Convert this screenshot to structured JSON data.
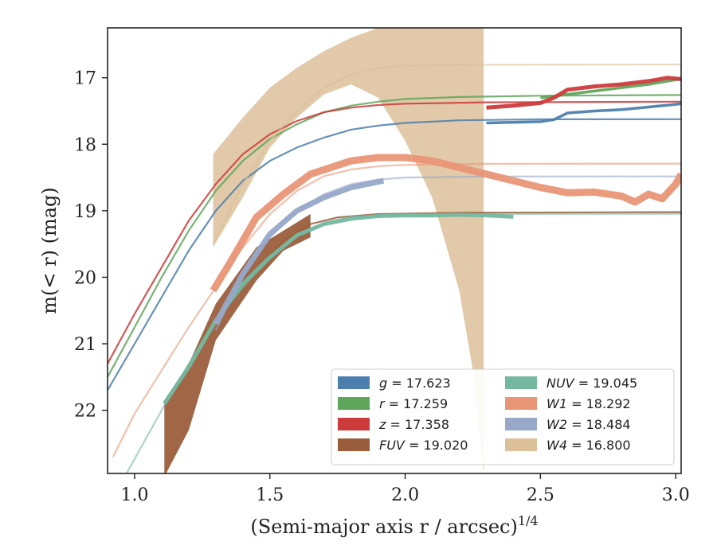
{
  "chart_data": {
    "type": "line",
    "xlabel": "(Semi-major axis r / arcsec)",
    "xlabel_superscript": "1/4",
    "ylabel": "m(< r) (mag)",
    "xlim": [
      0.9,
      3.02
    ],
    "ylim": [
      22.95,
      16.25
    ],
    "y_inverted": true,
    "grid": false,
    "legend_position": "lower-right",
    "x_ticks": [
      "1.0",
      "1.5",
      "2.0",
      "2.5",
      "3.0"
    ],
    "x_tick_values": [
      1.0,
      1.5,
      2.0,
      2.5,
      3.0
    ],
    "y_ticks": [
      "17",
      "18",
      "19",
      "20",
      "21",
      "22"
    ],
    "y_tick_values": [
      17,
      18,
      19,
      20,
      21,
      22
    ],
    "legend": [
      {
        "band": "g",
        "value": "17.623",
        "color": "#4c7fad"
      },
      {
        "band": "r",
        "value": "17.259",
        "color": "#5fa65a"
      },
      {
        "band": "z",
        "value": "17.358",
        "color": "#cc3b3b"
      },
      {
        "band": "FUV",
        "value": "19.020",
        "color": "#9b5e3c"
      },
      {
        "band": "NUV",
        "value": "19.045",
        "color": "#74b8a0"
      },
      {
        "band": "W1",
        "value": "18.292",
        "color": "#e99676"
      },
      {
        "band": "W2",
        "value": "18.484",
        "color": "#97a8c9"
      },
      {
        "band": "W4",
        "value": "16.800",
        "color": "#dcc09a"
      }
    ],
    "series": [
      {
        "band": "g",
        "color": "#4c7fad",
        "model_curve": [
          [
            0.9,
            21.7
          ],
          [
            1.0,
            21.0
          ],
          [
            1.1,
            20.3
          ],
          [
            1.2,
            19.6
          ],
          [
            1.3,
            19.0
          ],
          [
            1.4,
            18.55
          ],
          [
            1.5,
            18.25
          ],
          [
            1.6,
            18.05
          ],
          [
            1.7,
            17.9
          ],
          [
            1.8,
            17.78
          ],
          [
            1.9,
            17.72
          ],
          [
            2.0,
            17.68
          ],
          [
            2.2,
            17.64
          ],
          [
            2.5,
            17.625
          ],
          [
            3.02,
            17.623
          ]
        ],
        "measured": [
          [
            2.3,
            17.68
          ],
          [
            2.4,
            17.67
          ],
          [
            2.5,
            17.66
          ],
          [
            2.55,
            17.63
          ],
          [
            2.6,
            17.53
          ],
          [
            2.7,
            17.5
          ],
          [
            2.8,
            17.48
          ],
          [
            2.9,
            17.44
          ],
          [
            3.0,
            17.4
          ],
          [
            3.02,
            17.39
          ]
        ]
      },
      {
        "band": "r",
        "color": "#5fa65a",
        "model_curve": [
          [
            0.9,
            21.5
          ],
          [
            1.0,
            20.75
          ],
          [
            1.1,
            20.0
          ],
          [
            1.2,
            19.3
          ],
          [
            1.3,
            18.7
          ],
          [
            1.4,
            18.25
          ],
          [
            1.5,
            17.92
          ],
          [
            1.6,
            17.7
          ],
          [
            1.7,
            17.52
          ],
          [
            1.8,
            17.42
          ],
          [
            1.9,
            17.36
          ],
          [
            2.0,
            17.32
          ],
          [
            2.2,
            17.29
          ],
          [
            2.5,
            17.27
          ],
          [
            3.02,
            17.26
          ]
        ],
        "measured": [
          [
            2.5,
            17.3
          ],
          [
            2.6,
            17.25
          ],
          [
            2.7,
            17.2
          ],
          [
            2.8,
            17.15
          ],
          [
            2.9,
            17.1
          ],
          [
            3.0,
            17.03
          ],
          [
            3.02,
            17.02
          ]
        ]
      },
      {
        "band": "z",
        "color": "#cc3b3b",
        "model_curve": [
          [
            0.9,
            21.3
          ],
          [
            1.0,
            20.55
          ],
          [
            1.1,
            19.85
          ],
          [
            1.2,
            19.15
          ],
          [
            1.3,
            18.6
          ],
          [
            1.4,
            18.15
          ],
          [
            1.5,
            17.85
          ],
          [
            1.6,
            17.65
          ],
          [
            1.7,
            17.52
          ],
          [
            1.8,
            17.45
          ],
          [
            1.9,
            17.41
          ],
          [
            2.0,
            17.39
          ],
          [
            2.3,
            17.37
          ],
          [
            3.02,
            17.36
          ]
        ],
        "measured": [
          [
            2.3,
            17.45
          ],
          [
            2.4,
            17.42
          ],
          [
            2.5,
            17.38
          ],
          [
            2.55,
            17.3
          ],
          [
            2.6,
            17.18
          ],
          [
            2.7,
            17.13
          ],
          [
            2.8,
            17.1
          ],
          [
            2.9,
            17.05
          ],
          [
            2.97,
            17.0
          ],
          [
            3.02,
            17.02
          ]
        ]
      },
      {
        "band": "FUV",
        "color": "#9b5e3c",
        "model_curve": [
          [
            1.45,
            19.9
          ],
          [
            1.55,
            19.45
          ],
          [
            1.65,
            19.2
          ],
          [
            1.75,
            19.1
          ],
          [
            1.9,
            19.05
          ],
          [
            2.2,
            19.03
          ],
          [
            3.02,
            19.02
          ]
        ],
        "band_upper": [
          [
            1.11,
            21.85
          ],
          [
            1.2,
            21.3
          ],
          [
            1.3,
            20.4
          ],
          [
            1.45,
            19.55
          ],
          [
            1.55,
            19.3
          ],
          [
            1.65,
            19.05
          ]
        ],
        "band_lower": [
          [
            1.11,
            23.0
          ],
          [
            1.2,
            22.3
          ],
          [
            1.3,
            20.95
          ],
          [
            1.45,
            20.05
          ],
          [
            1.55,
            19.6
          ],
          [
            1.65,
            19.4
          ]
        ]
      },
      {
        "band": "NUV",
        "color": "#74b8a0",
        "model_curve": [
          [
            0.97,
            22.95
          ],
          [
            1.1,
            22.0
          ],
          [
            1.2,
            21.3
          ],
          [
            1.3,
            20.65
          ],
          [
            1.4,
            20.15
          ],
          [
            1.5,
            19.7
          ],
          [
            1.6,
            19.35
          ],
          [
            1.7,
            19.18
          ],
          [
            1.8,
            19.09
          ],
          [
            2.0,
            19.06
          ],
          [
            2.3,
            19.05
          ],
          [
            3.02,
            19.045
          ]
        ],
        "measured": [
          [
            1.11,
            21.9
          ],
          [
            1.2,
            21.35
          ],
          [
            1.3,
            20.65
          ],
          [
            1.4,
            20.1
          ],
          [
            1.5,
            19.7
          ],
          [
            1.6,
            19.37
          ],
          [
            1.7,
            19.2
          ],
          [
            1.8,
            19.12
          ],
          [
            1.9,
            19.08
          ],
          [
            2.0,
            19.07
          ],
          [
            2.1,
            19.07
          ],
          [
            2.2,
            19.06
          ],
          [
            2.3,
            19.07
          ],
          [
            2.35,
            19.08
          ],
          [
            2.4,
            19.09
          ]
        ]
      },
      {
        "band": "W1",
        "color": "#e99676",
        "model_curve": [
          [
            0.92,
            22.7
          ],
          [
            1.0,
            22.05
          ],
          [
            1.1,
            21.4
          ],
          [
            1.2,
            20.75
          ],
          [
            1.3,
            20.15
          ],
          [
            1.4,
            19.55
          ],
          [
            1.5,
            19.05
          ],
          [
            1.6,
            18.7
          ],
          [
            1.7,
            18.48
          ],
          [
            1.8,
            18.38
          ],
          [
            1.9,
            18.33
          ],
          [
            2.0,
            18.31
          ],
          [
            2.3,
            18.295
          ],
          [
            3.02,
            18.292
          ]
        ],
        "measured": [
          [
            1.29,
            20.2
          ],
          [
            1.35,
            19.8
          ],
          [
            1.45,
            19.1
          ],
          [
            1.55,
            18.75
          ],
          [
            1.65,
            18.45
          ],
          [
            1.8,
            18.25
          ],
          [
            1.9,
            18.2
          ],
          [
            2.0,
            18.2
          ],
          [
            2.1,
            18.25
          ],
          [
            2.2,
            18.35
          ],
          [
            2.3,
            18.45
          ],
          [
            2.4,
            18.55
          ],
          [
            2.5,
            18.65
          ],
          [
            2.6,
            18.73
          ],
          [
            2.7,
            18.72
          ],
          [
            2.8,
            18.78
          ],
          [
            2.85,
            18.87
          ],
          [
            2.9,
            18.75
          ],
          [
            2.95,
            18.82
          ],
          [
            3.0,
            18.6
          ],
          [
            3.02,
            18.45
          ]
        ]
      },
      {
        "band": "W2",
        "color": "#97a8c9",
        "model_curve": [
          [
            1.3,
            20.8
          ],
          [
            1.4,
            19.95
          ],
          [
            1.5,
            19.4
          ],
          [
            1.6,
            19.0
          ],
          [
            1.7,
            18.75
          ],
          [
            1.8,
            18.6
          ],
          [
            1.9,
            18.53
          ],
          [
            2.0,
            18.5
          ],
          [
            2.3,
            18.486
          ],
          [
            3.02,
            18.484
          ]
        ],
        "measured": [
          [
            1.3,
            20.7
          ],
          [
            1.4,
            19.95
          ],
          [
            1.5,
            19.35
          ],
          [
            1.6,
            19.0
          ],
          [
            1.7,
            18.8
          ],
          [
            1.8,
            18.65
          ],
          [
            1.92,
            18.55
          ]
        ]
      },
      {
        "band": "W4",
        "color": "#dcc09a",
        "model_curve": [
          [
            1.29,
            19.5
          ],
          [
            1.4,
            18.6
          ],
          [
            1.5,
            17.95
          ],
          [
            1.6,
            17.5
          ],
          [
            1.7,
            17.15
          ],
          [
            1.8,
            16.95
          ],
          [
            1.9,
            16.85
          ],
          [
            2.0,
            16.82
          ],
          [
            2.3,
            16.805
          ],
          [
            3.02,
            16.8
          ]
        ],
        "band_upper": [
          [
            1.29,
            18.15
          ],
          [
            1.4,
            17.6
          ],
          [
            1.5,
            17.15
          ],
          [
            1.6,
            16.85
          ],
          [
            1.7,
            16.6
          ],
          [
            1.8,
            16.4
          ],
          [
            1.9,
            16.25
          ],
          [
            2.29,
            16.25
          ]
        ],
        "band_lower": [
          [
            1.29,
            19.55
          ],
          [
            1.4,
            18.8
          ],
          [
            1.5,
            18.05
          ],
          [
            1.6,
            17.6
          ],
          [
            1.7,
            17.25
          ],
          [
            1.8,
            17.1
          ],
          [
            1.9,
            17.3
          ],
          [
            2.0,
            17.95
          ],
          [
            2.1,
            18.8
          ],
          [
            2.2,
            20.2
          ],
          [
            2.25,
            21.4
          ],
          [
            2.29,
            22.95
          ]
        ]
      }
    ]
  }
}
